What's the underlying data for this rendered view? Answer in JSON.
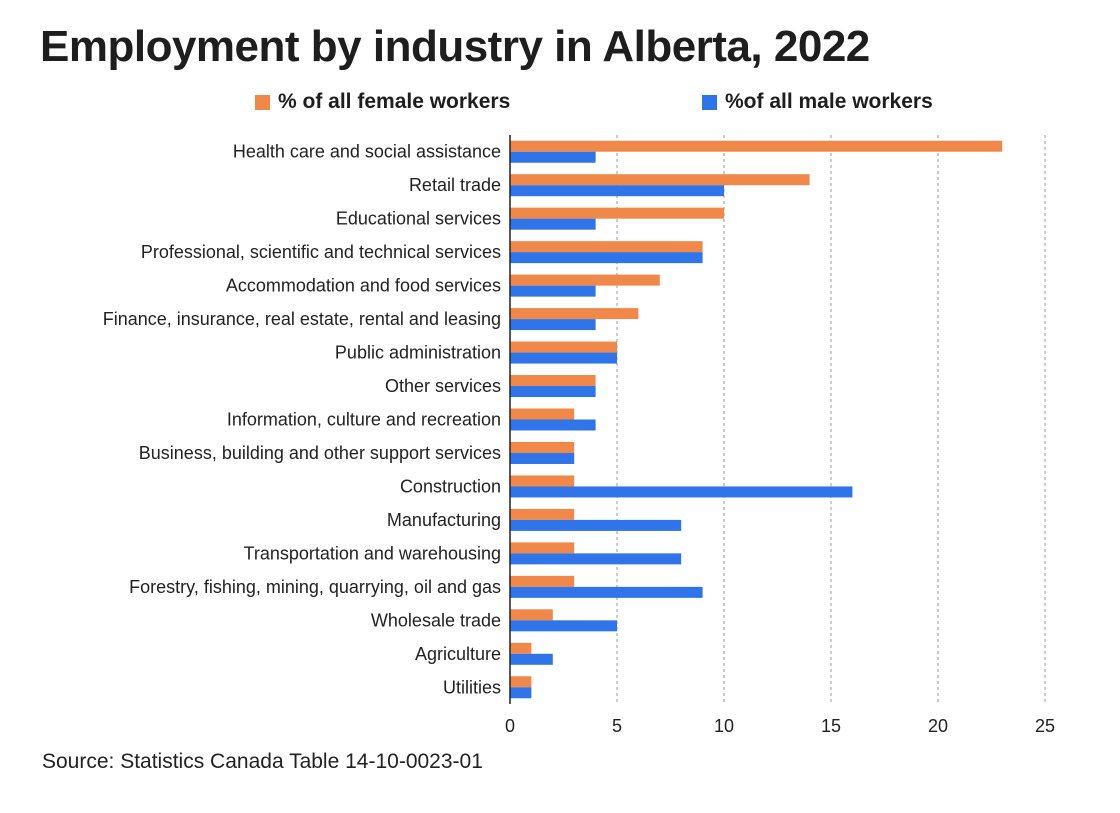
{
  "chart_data": {
    "type": "bar",
    "orientation": "horizontal",
    "title": "Employment by industry in Alberta, 2022",
    "categories": [
      "Health care and social assistance",
      "Retail trade",
      "Educational services",
      "Professional, scientific and technical services",
      "Accommodation and food services",
      "Finance, insurance, real estate, rental and leasing",
      "Public administration",
      "Other services ",
      "Information, culture and recreation",
      "Business, building and other support services",
      "Construction",
      "Manufacturing",
      "Transportation and warehousing",
      "Forestry, fishing, mining, quarrying, oil and gas",
      "Wholesale trade",
      "Agriculture",
      "Utilities"
    ],
    "series": [
      {
        "name": "% of all female workers",
        "color": "#f0884a",
        "values": [
          23,
          14,
          10,
          9,
          7,
          6,
          5,
          4,
          3,
          3,
          3,
          3,
          3,
          3,
          2,
          1,
          1
        ]
      },
      {
        "name": "%of all male workers",
        "color": "#2f74e8",
        "values": [
          4,
          10,
          4,
          9,
          4,
          4,
          5,
          4,
          4,
          3,
          16,
          8,
          8,
          9,
          5,
          2,
          1
        ]
      }
    ],
    "xlim": [
      0,
      25
    ],
    "xticks": [
      0,
      5,
      10,
      15,
      20,
      25
    ],
    "xtick_labels": [
      "0",
      "5",
      "10",
      "15",
      "20",
      "25"
    ],
    "xlabel": "",
    "ylabel": "",
    "grid": "vertical dashed",
    "legend": "top"
  },
  "source": "Source: Statistics Canada Table 14-10-0023-01"
}
